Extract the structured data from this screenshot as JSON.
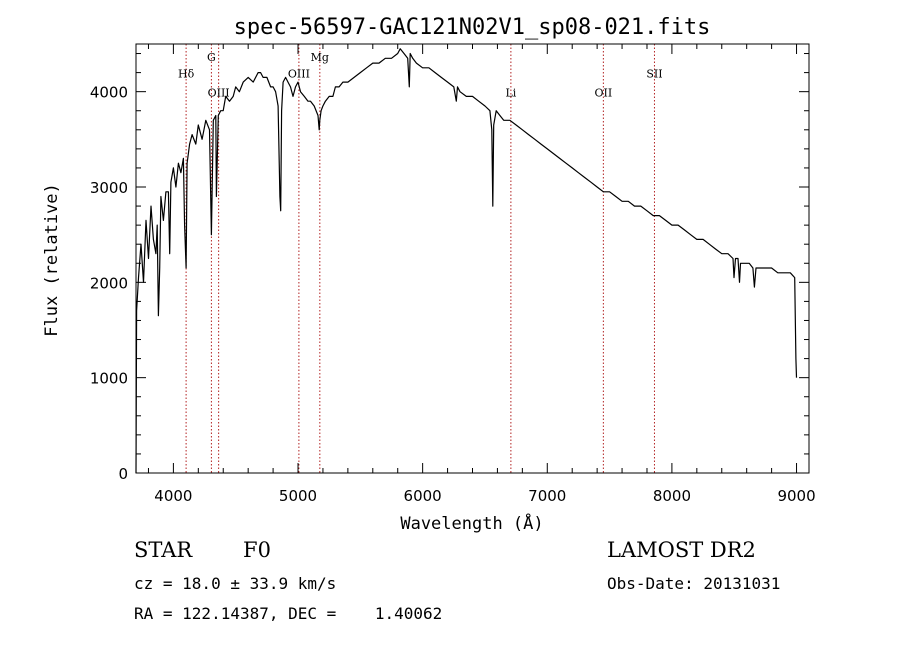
{
  "chart_data": {
    "type": "line",
    "title": "spec-56597-GAC121N02V1_sp08-021.fits",
    "xlabel": "Wavelength (Å)",
    "ylabel": "Flux (relative)",
    "xlim": [
      3700,
      9100
    ],
    "ylim": [
      0,
      4500
    ],
    "x_ticks": [
      4000,
      5000,
      6000,
      7000,
      8000,
      9000
    ],
    "y_ticks": [
      0,
      1000,
      2000,
      3000,
      4000
    ],
    "grid": false,
    "line_color": "#000000",
    "marker_color": "#b22222",
    "lines": [
      {
        "label": "Hδ",
        "wavelength": 4102,
        "label_level": 4150
      },
      {
        "label": "G",
        "wavelength": 4305,
        "label_level": 4320
      },
      {
        "label": "OIII",
        "wavelength": 4363,
        "label_level": 3950
      },
      {
        "label": "OIII",
        "wavelength": 5007,
        "label_level": 4150
      },
      {
        "label": "Mg",
        "wavelength": 5175,
        "label_level": 4320
      },
      {
        "label": "Li",
        "wavelength": 6708,
        "label_level": 3950
      },
      {
        "label": "OII",
        "wavelength": 7450,
        "label_level": 3950
      },
      {
        "label": "SII",
        "wavelength": 7860,
        "label_level": 4150
      }
    ],
    "series": [
      {
        "x": [
          3700,
          3705,
          3720,
          3740,
          3760,
          3780,
          3800,
          3820,
          3840,
          3860,
          3870,
          3880,
          3890,
          3900,
          3920,
          3940,
          3960,
          3970,
          3980,
          4000,
          4020,
          4040,
          4060,
          4080,
          4090,
          4102,
          4110,
          4130,
          4150,
          4180,
          4200,
          4230,
          4260,
          4290,
          4305,
          4320,
          4340,
          4345,
          4360,
          4380,
          4400,
          4420,
          4450,
          4480,
          4500,
          4530,
          4560,
          4600,
          4640,
          4680,
          4700,
          4720,
          4750,
          4780,
          4800,
          4820,
          4840,
          4855,
          4861,
          4868,
          4880,
          4900,
          4920,
          4940,
          4960,
          4980,
          5000,
          5020,
          5050,
          5080,
          5100,
          5130,
          5160,
          5170,
          5175,
          5185,
          5200,
          5220,
          5250,
          5280,
          5300,
          5330,
          5360,
          5400,
          5450,
          5500,
          5550,
          5600,
          5650,
          5700,
          5750,
          5800,
          5820,
          5850,
          5880,
          5893,
          5900,
          5920,
          5950,
          6000,
          6050,
          6100,
          6150,
          6200,
          6250,
          6270,
          6280,
          6300,
          6350,
          6400,
          6450,
          6500,
          6540,
          6555,
          6563,
          6570,
          6590,
          6620,
          6650,
          6700,
          6750,
          6800,
          6850,
          6900,
          6950,
          7000,
          7050,
          7100,
          7150,
          7200,
          7250,
          7300,
          7350,
          7400,
          7450,
          7500,
          7550,
          7600,
          7650,
          7700,
          7750,
          7800,
          7850,
          7900,
          7950,
          8000,
          8050,
          8100,
          8150,
          8200,
          8250,
          8300,
          8350,
          8400,
          8450,
          8490,
          8498,
          8510,
          8530,
          8542,
          8550,
          8580,
          8620,
          8650,
          8662,
          8675,
          8700,
          8750,
          8800,
          8850,
          8900,
          8950,
          8985,
          8995,
          9000
        ],
        "y": [
          0,
          1700,
          2050,
          2400,
          2000,
          2650,
          2250,
          2800,
          2450,
          2300,
          2600,
          1650,
          2150,
          2900,
          2650,
          2950,
          2950,
          2300,
          3050,
          3200,
          3000,
          3250,
          3150,
          3300,
          2600,
          2150,
          3250,
          3450,
          3550,
          3450,
          3650,
          3500,
          3700,
          3600,
          2500,
          3700,
          3750,
          2900,
          3750,
          3800,
          3800,
          3950,
          3900,
          3950,
          4050,
          4000,
          4100,
          4150,
          4100,
          4200,
          4200,
          4150,
          4150,
          4050,
          4050,
          4000,
          3850,
          2900,
          2750,
          3800,
          4100,
          4150,
          4100,
          4050,
          3950,
          4050,
          4100,
          4000,
          3950,
          3900,
          3900,
          3850,
          3750,
          3600,
          3700,
          3800,
          3850,
          3900,
          3950,
          3950,
          4050,
          4050,
          4100,
          4100,
          4150,
          4200,
          4250,
          4300,
          4300,
          4350,
          4350,
          4400,
          4450,
          4400,
          4350,
          4050,
          4400,
          4350,
          4300,
          4250,
          4250,
          4200,
          4150,
          4100,
          4050,
          3900,
          4050,
          4000,
          3950,
          3950,
          3900,
          3850,
          3800,
          3600,
          2800,
          3650,
          3800,
          3750,
          3700,
          3700,
          3650,
          3600,
          3550,
          3500,
          3450,
          3400,
          3350,
          3300,
          3250,
          3200,
          3150,
          3100,
          3050,
          3000,
          2950,
          2950,
          2900,
          2850,
          2850,
          2800,
          2800,
          2750,
          2700,
          2700,
          2650,
          2600,
          2600,
          2550,
          2500,
          2450,
          2450,
          2400,
          2350,
          2300,
          2300,
          2250,
          2050,
          2250,
          2250,
          2000,
          2200,
          2200,
          2200,
          2150,
          1950,
          2150,
          2150,
          2150,
          2150,
          2100,
          2100,
          2100,
          2050,
          1200,
          1000
        ]
      }
    ]
  },
  "info": {
    "object_type": "STAR",
    "subclass": "F0",
    "survey": "LAMOST DR2",
    "cz": "cz = 18.0 ± 33.9 km/s",
    "obs_date": "Obs-Date: 20131031",
    "radec": "RA = 122.14387, DEC =    1.40062"
  }
}
